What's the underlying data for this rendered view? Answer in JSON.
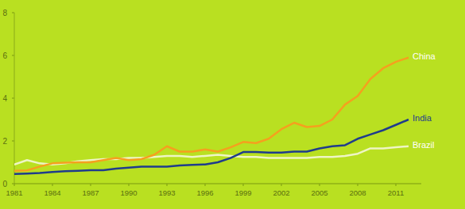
{
  "chart_data": {
    "type": "line",
    "x": [
      1981,
      1982,
      1983,
      1984,
      1985,
      1986,
      1987,
      1988,
      1989,
      1990,
      1991,
      1992,
      1993,
      1994,
      1995,
      1996,
      1997,
      1998,
      1999,
      2000,
      2001,
      2002,
      2003,
      2004,
      2005,
      2006,
      2007,
      2008,
      2009,
      2010,
      2011,
      2012
    ],
    "series": [
      {
        "name": "China",
        "color": "#f5a01e",
        "values": [
          0.6,
          0.62,
          0.8,
          0.95,
          0.98,
          1.0,
          1.0,
          1.1,
          1.2,
          1.1,
          1.15,
          1.35,
          1.75,
          1.5,
          1.5,
          1.6,
          1.5,
          1.7,
          1.95,
          1.9,
          2.1,
          2.55,
          2.85,
          2.65,
          2.7,
          3.0,
          3.7,
          4.1,
          4.9,
          5.4,
          5.7,
          5.9
        ]
      },
      {
        "name": "India",
        "color": "#1f3c8c",
        "values": [
          0.45,
          0.47,
          0.5,
          0.55,
          0.58,
          0.6,
          0.63,
          0.63,
          0.7,
          0.75,
          0.8,
          0.8,
          0.8,
          0.85,
          0.88,
          0.9,
          1.0,
          1.2,
          1.48,
          1.48,
          1.45,
          1.45,
          1.5,
          1.5,
          1.65,
          1.75,
          1.8,
          2.1,
          2.3,
          2.5,
          2.75,
          3.0
        ]
      },
      {
        "name": "Brazil",
        "color": "#eef5c4",
        "values": [
          0.9,
          1.1,
          0.95,
          0.9,
          0.95,
          1.05,
          1.1,
          1.15,
          1.15,
          1.2,
          1.2,
          1.25,
          1.3,
          1.3,
          1.25,
          1.3,
          1.35,
          1.3,
          1.25,
          1.25,
          1.2,
          1.2,
          1.2,
          1.2,
          1.25,
          1.25,
          1.3,
          1.4,
          1.65,
          1.65,
          1.7,
          1.75
        ]
      }
    ],
    "xlim": [
      1981,
      2013
    ],
    "xticks": [
      1981,
      1984,
      1987,
      1990,
      1993,
      1996,
      1999,
      2002,
      2005,
      2008,
      2011
    ],
    "ylim": [
      0,
      8
    ],
    "yticks": [
      0,
      2,
      4,
      6,
      8
    ],
    "grid": false
  }
}
